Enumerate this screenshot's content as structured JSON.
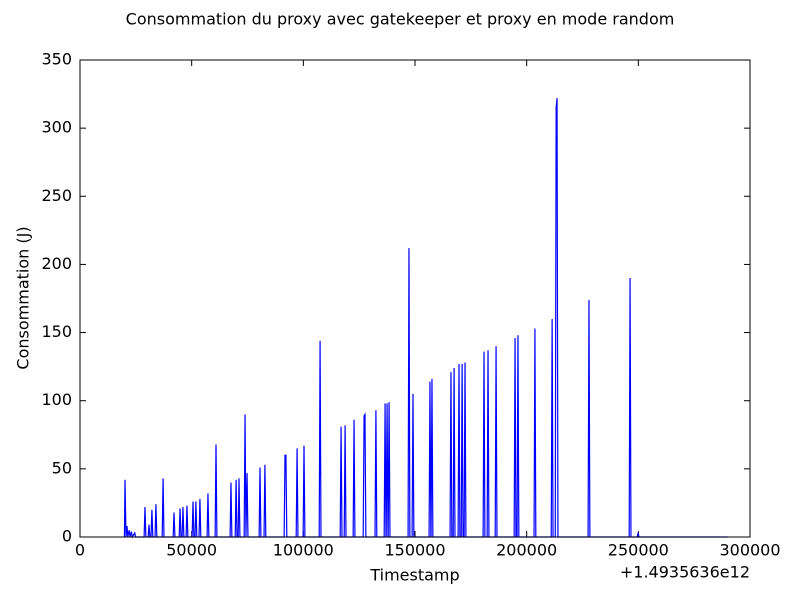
{
  "chart_data": {
    "type": "line",
    "title": "Consommation du proxy avec gatekeeper et proxy en mode random",
    "x_label": "Timestamp",
    "y_label": "Consommation (J)",
    "x_offset_label": "+1.4935636e12",
    "color": "#0000ff",
    "grid": false,
    "xlim": [
      0,
      300000
    ],
    "xticks": [
      0,
      50000,
      100000,
      150000,
      200000,
      250000,
      300000
    ],
    "ylim": [
      0,
      350
    ],
    "yticks": [
      0,
      50,
      100,
      150,
      200,
      250,
      300,
      350
    ],
    "x": [
      19900,
      20150,
      20600,
      21050,
      21400,
      22000,
      22400,
      23000,
      23400,
      24500,
      24900,
      28700,
      29100,
      29500,
      30500,
      30900,
      31300,
      31800,
      32200,
      32600,
      33600,
      34000,
      34400,
      36800,
      37200,
      37600,
      41700,
      42100,
      42500,
      44400,
      44800,
      45200,
      45700,
      46100,
      46500,
      47500,
      47900,
      48300,
      50200,
      50600,
      51000,
      51500,
      51900,
      52300,
      53300,
      53700,
      54100,
      56900,
      57300,
      57700,
      60500,
      60900,
      61300,
      67200,
      67600,
      68000,
      69500,
      69900,
      70300,
      70800,
      71200,
      71600,
      73500,
      73900,
      74300,
      74800,
      75200,
      80200,
      80600,
      81000,
      82400,
      82800,
      83200,
      91400,
      91800,
      92200,
      92600,
      96800,
      97200,
      97600,
      99900,
      100300,
      100700,
      107100,
      107500,
      107900,
      116500,
      116900,
      117300,
      118300,
      118700,
      119100,
      122300,
      122700,
      123100,
      126800,
      127200,
      127600,
      128000,
      132100,
      132500,
      132900,
      136200,
      136600,
      137000,
      137100,
      137500,
      137900,
      138000,
      138400,
      138800,
      146900,
      147300,
      147700,
      148700,
      149100,
      149500,
      156300,
      156700,
      157100,
      157200,
      157600,
      158000,
      165700,
      166100,
      166500,
      167100,
      167500,
      167900,
      169300,
      169700,
      170100,
      170700,
      171100,
      171500,
      172000,
      172400,
      172800,
      180500,
      180900,
      181300,
      182300,
      182700,
      183100,
      185900,
      186300,
      186700,
      194400,
      194800,
      195200,
      195700,
      196100,
      196500,
      203300,
      203700,
      204100,
      211000,
      211400,
      211800,
      212800,
      213200,
      213600,
      214000,
      227500,
      227900,
      228300,
      245900,
      246300,
      246700,
      249500,
      249900,
      250300,
      290000
    ],
    "values": [
      0,
      42,
      0,
      8,
      0,
      5,
      0,
      4,
      0,
      3,
      0,
      0,
      22,
      0,
      0,
      9,
      0,
      0,
      20,
      0,
      0,
      24,
      0,
      0,
      43,
      0,
      0,
      18,
      0,
      0,
      21,
      0,
      0,
      22,
      0,
      0,
      23,
      0,
      0,
      26,
      0,
      0,
      26,
      0,
      0,
      28,
      0,
      0,
      32,
      0,
      0,
      68,
      0,
      0,
      40,
      0,
      0,
      42,
      0,
      0,
      43,
      0,
      0,
      90,
      0,
      47,
      0,
      0,
      51,
      0,
      0,
      53,
      0,
      0,
      60,
      60,
      0,
      0,
      65,
      0,
      0,
      67,
      0,
      0,
      144,
      0,
      0,
      81,
      0,
      0,
      82,
      0,
      0,
      86,
      0,
      0,
      89,
      90,
      0,
      0,
      93,
      0,
      0,
      98,
      0,
      0,
      98,
      0,
      0,
      99,
      0,
      0,
      212,
      0,
      0,
      105,
      0,
      0,
      114,
      0,
      0,
      116,
      0,
      0,
      121,
      0,
      0,
      124,
      0,
      0,
      127,
      0,
      0,
      127,
      0,
      0,
      128,
      0,
      0,
      136,
      0,
      0,
      137,
      0,
      0,
      140,
      0,
      0,
      146,
      0,
      0,
      148,
      0,
      0,
      153,
      0,
      0,
      160,
      0,
      0,
      315,
      322,
      0,
      0,
      174,
      0,
      0,
      190,
      0,
      0,
      3,
      0,
      0
    ]
  }
}
